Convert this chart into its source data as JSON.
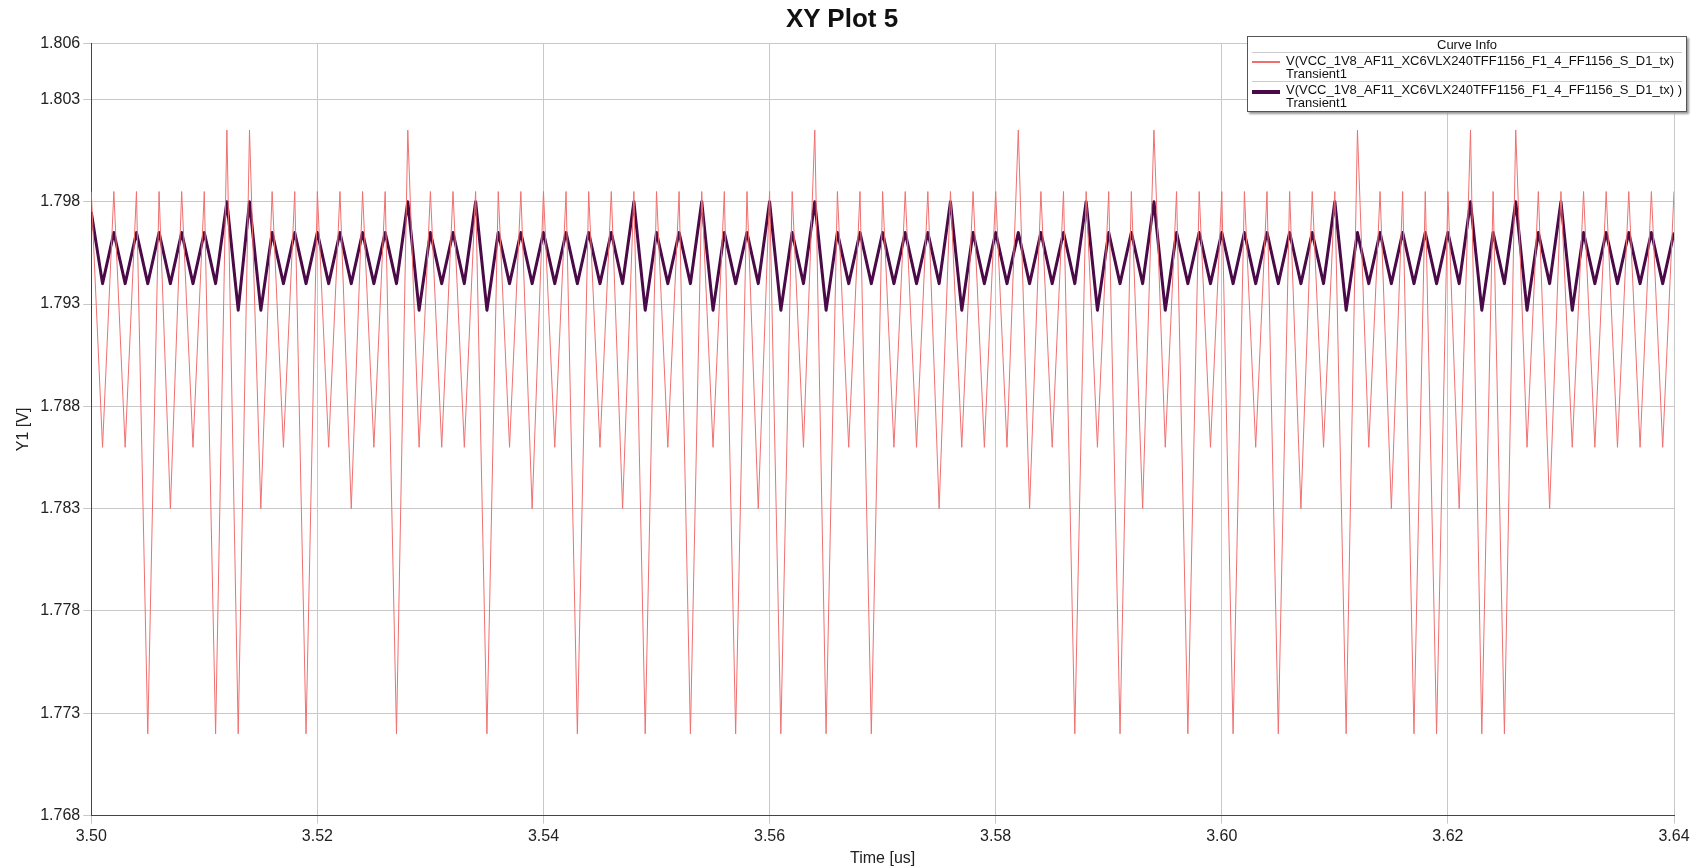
{
  "chart_data": {
    "type": "line",
    "title": "XY Plot 5",
    "xlabel": "Time [us]",
    "ylabel": "Y1 [V]",
    "legend_title": "Curve Info",
    "legend": "top right",
    "grid": true,
    "marker": "none",
    "line_style": "solid",
    "xlim": [
      3.5,
      3.64
    ],
    "xticks": [
      {
        "value": 3.5,
        "label": "3.50"
      },
      {
        "value": 3.52,
        "label": "3.52"
      },
      {
        "value": 3.54,
        "label": "3.54"
      },
      {
        "value": 3.56,
        "label": "3.56"
      },
      {
        "value": 3.58,
        "label": "3.58"
      },
      {
        "value": 3.6,
        "label": "3.60"
      },
      {
        "value": 3.62,
        "label": "3.62"
      },
      {
        "value": 3.64,
        "label": "3.64"
      }
    ],
    "ylim": [
      1.768,
      1.80575
    ],
    "yticks": [
      1.768,
      1.773,
      1.778,
      1.783,
      1.788,
      1.793,
      1.798,
      1.803,
      {
        "value": 1.80575,
        "label": "1.806"
      }
    ],
    "x": [
      3.5,
      3.501,
      3.502,
      3.503,
      3.504,
      3.505,
      3.506,
      3.507,
      3.508,
      3.509,
      3.51,
      3.511,
      3.512,
      3.513,
      3.514,
      3.515,
      3.516,
      3.517,
      3.518,
      3.519,
      3.52,
      3.521,
      3.522,
      3.523,
      3.524,
      3.525,
      3.526,
      3.527,
      3.528,
      3.529,
      3.53,
      3.531,
      3.532,
      3.533,
      3.534,
      3.535,
      3.536,
      3.537,
      3.538,
      3.539,
      3.54,
      3.541,
      3.542,
      3.543,
      3.544,
      3.545,
      3.546,
      3.547,
      3.548,
      3.549,
      3.55,
      3.551,
      3.552,
      3.553,
      3.554,
      3.555,
      3.556,
      3.557,
      3.558,
      3.559,
      3.56,
      3.561,
      3.562,
      3.563,
      3.564,
      3.565,
      3.566,
      3.567,
      3.568,
      3.569,
      3.57,
      3.571,
      3.572,
      3.573,
      3.574,
      3.575,
      3.576,
      3.577,
      3.578,
      3.579,
      3.58,
      3.581,
      3.582,
      3.583,
      3.584,
      3.585,
      3.586,
      3.587,
      3.588,
      3.589,
      3.59,
      3.591,
      3.592,
      3.593,
      3.594,
      3.595,
      3.596,
      3.597,
      3.598,
      3.599,
      3.6,
      3.601,
      3.602,
      3.603,
      3.604,
      3.605,
      3.606,
      3.607,
      3.608,
      3.609,
      3.61,
      3.611,
      3.612,
      3.613,
      3.614,
      3.615,
      3.616,
      3.617,
      3.618,
      3.619,
      3.62,
      3.621,
      3.622,
      3.623,
      3.624,
      3.625,
      3.626,
      3.627,
      3.628,
      3.629,
      3.63,
      3.631,
      3.632,
      3.633,
      3.634,
      3.635,
      3.636,
      3.637,
      3.638,
      3.639,
      3.64
    ],
    "series": [
      {
        "name": "V(VCC_1V8_AF11_XC6VLX240TFF1156_F1_4_FF1156_S_D1_tx)\nTransient1",
        "color": "#f07070",
        "values": [
          1.7985,
          1.786,
          1.7985,
          1.786,
          1.7985,
          1.772,
          1.7985,
          1.783,
          1.7985,
          1.786,
          1.7985,
          1.772,
          1.8015,
          1.772,
          1.8015,
          1.783,
          1.7985,
          1.786,
          1.7985,
          1.772,
          1.7985,
          1.786,
          1.7985,
          1.783,
          1.7985,
          1.786,
          1.7985,
          1.772,
          1.8015,
          1.786,
          1.7985,
          1.786,
          1.7985,
          1.786,
          1.7985,
          1.772,
          1.7985,
          1.786,
          1.7985,
          1.783,
          1.7985,
          1.786,
          1.7985,
          1.772,
          1.7985,
          1.786,
          1.7985,
          1.783,
          1.7985,
          1.772,
          1.7985,
          1.786,
          1.7985,
          1.772,
          1.7985,
          1.786,
          1.7985,
          1.772,
          1.7985,
          1.783,
          1.7985,
          1.772,
          1.7985,
          1.786,
          1.8015,
          1.772,
          1.7985,
          1.786,
          1.7985,
          1.772,
          1.7985,
          1.786,
          1.7985,
          1.786,
          1.7985,
          1.783,
          1.7985,
          1.786,
          1.7985,
          1.786,
          1.7985,
          1.786,
          1.8015,
          1.783,
          1.7985,
          1.786,
          1.7985,
          1.772,
          1.7985,
          1.786,
          1.7985,
          1.772,
          1.7985,
          1.783,
          1.8015,
          1.786,
          1.7985,
          1.772,
          1.7985,
          1.786,
          1.7985,
          1.772,
          1.7985,
          1.786,
          1.7985,
          1.772,
          1.7985,
          1.783,
          1.7985,
          1.786,
          1.7985,
          1.772,
          1.8015,
          1.786,
          1.7985,
          1.783,
          1.7985,
          1.772,
          1.7985,
          1.772,
          1.7985,
          1.783,
          1.8015,
          1.772,
          1.7985,
          1.772,
          1.8015,
          1.786,
          1.7985,
          1.783,
          1.7985,
          1.786,
          1.7985,
          1.786,
          1.7985,
          1.786,
          1.7985,
          1.786,
          1.7985,
          1.786,
          1.7985
        ]
      },
      {
        "name": "V(VCC_1V8_AF11_XC6VLX240TFF1156_F1_4_FF1156_S_D1_tx) )\nTransient1",
        "color": "#4a0a48",
        "values": [
          1.7975,
          1.794,
          1.7965,
          1.794,
          1.7965,
          1.794,
          1.7965,
          1.794,
          1.7965,
          1.794,
          1.7965,
          1.794,
          1.798,
          1.7927,
          1.798,
          1.7927,
          1.7965,
          1.794,
          1.7965,
          1.794,
          1.7965,
          1.794,
          1.7965,
          1.794,
          1.7965,
          1.794,
          1.7965,
          1.794,
          1.798,
          1.7927,
          1.7965,
          1.794,
          1.7965,
          1.794,
          1.798,
          1.7927,
          1.7965,
          1.794,
          1.7965,
          1.794,
          1.7965,
          1.794,
          1.7965,
          1.794,
          1.7965,
          1.794,
          1.7965,
          1.794,
          1.798,
          1.7927,
          1.7965,
          1.794,
          1.7965,
          1.794,
          1.798,
          1.7927,
          1.7965,
          1.794,
          1.7965,
          1.794,
          1.798,
          1.7927,
          1.7965,
          1.794,
          1.798,
          1.7927,
          1.7965,
          1.794,
          1.7965,
          1.794,
          1.7965,
          1.794,
          1.7965,
          1.794,
          1.7965,
          1.794,
          1.798,
          1.7927,
          1.7965,
          1.794,
          1.7965,
          1.794,
          1.7965,
          1.794,
          1.7965,
          1.794,
          1.7965,
          1.794,
          1.798,
          1.7927,
          1.7965,
          1.794,
          1.7965,
          1.794,
          1.798,
          1.7927,
          1.7965,
          1.794,
          1.7965,
          1.794,
          1.7965,
          1.794,
          1.7965,
          1.794,
          1.7965,
          1.794,
          1.7965,
          1.794,
          1.7965,
          1.794,
          1.798,
          1.7927,
          1.7965,
          1.794,
          1.7965,
          1.794,
          1.7965,
          1.794,
          1.7965,
          1.794,
          1.7965,
          1.794,
          1.798,
          1.7927,
          1.7965,
          1.794,
          1.798,
          1.7927,
          1.7965,
          1.794,
          1.798,
          1.7927,
          1.7965,
          1.794,
          1.7965,
          1.794,
          1.7965,
          1.794,
          1.7965,
          1.794,
          1.7965
        ]
      }
    ]
  }
}
